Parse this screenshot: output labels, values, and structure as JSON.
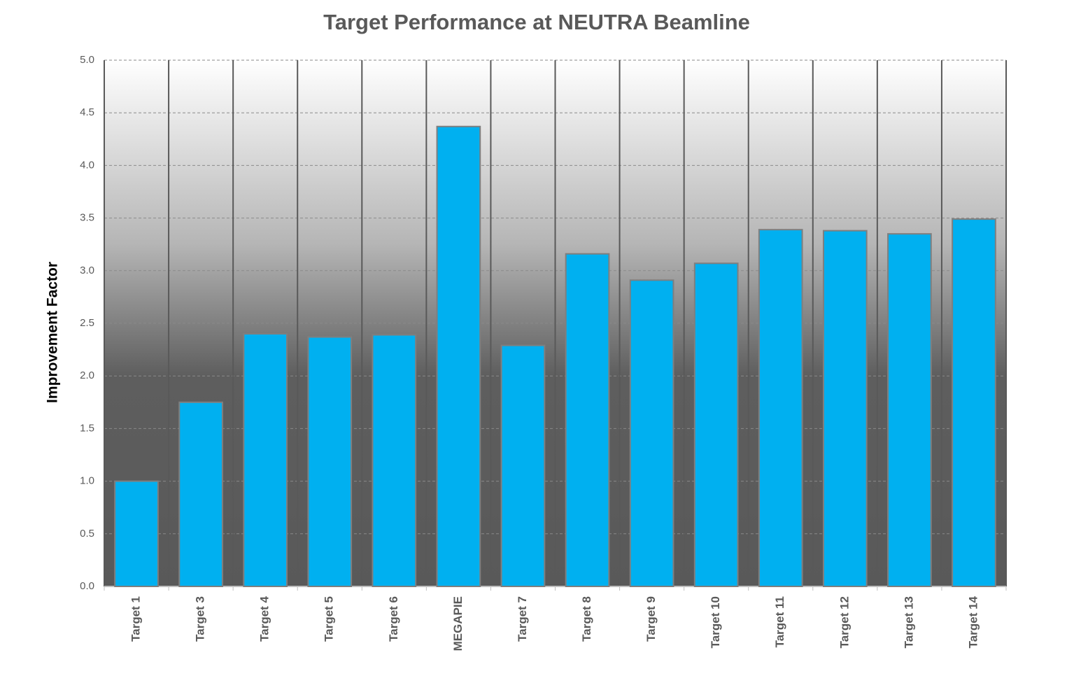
{
  "chart_data": {
    "type": "bar",
    "title": "Target Performance at NEUTRA Beamline",
    "y_label": "Improvement Factor",
    "categories": [
      "Target 1",
      "Target 3",
      "Target 4",
      "Target 5",
      "Target 6",
      "MEGAPIE",
      "Target 7",
      "Target 8",
      "Target 9",
      "Target 10",
      "Target 11",
      "Target 12",
      "Target 13",
      "Target 14"
    ],
    "values": [
      1.0,
      1.75,
      2.4,
      2.37,
      2.39,
      4.37,
      2.29,
      3.16,
      2.91,
      3.07,
      3.39,
      3.38,
      3.35,
      3.49
    ],
    "color": "#00b0f0",
    "ylim": [
      0,
      5
    ],
    "yticks": [
      {
        "value": 0,
        "label": "0.0"
      },
      0.5,
      {
        "value": 1,
        "label": "1.0"
      },
      1.5,
      {
        "value": 2,
        "label": "2.0"
      },
      2.5,
      {
        "value": 3,
        "label": "3.0"
      },
      3.5,
      {
        "value": 4,
        "label": "4.0"
      },
      4.5,
      {
        "value": 5,
        "label": "5.0"
      }
    ],
    "grid": true
  }
}
